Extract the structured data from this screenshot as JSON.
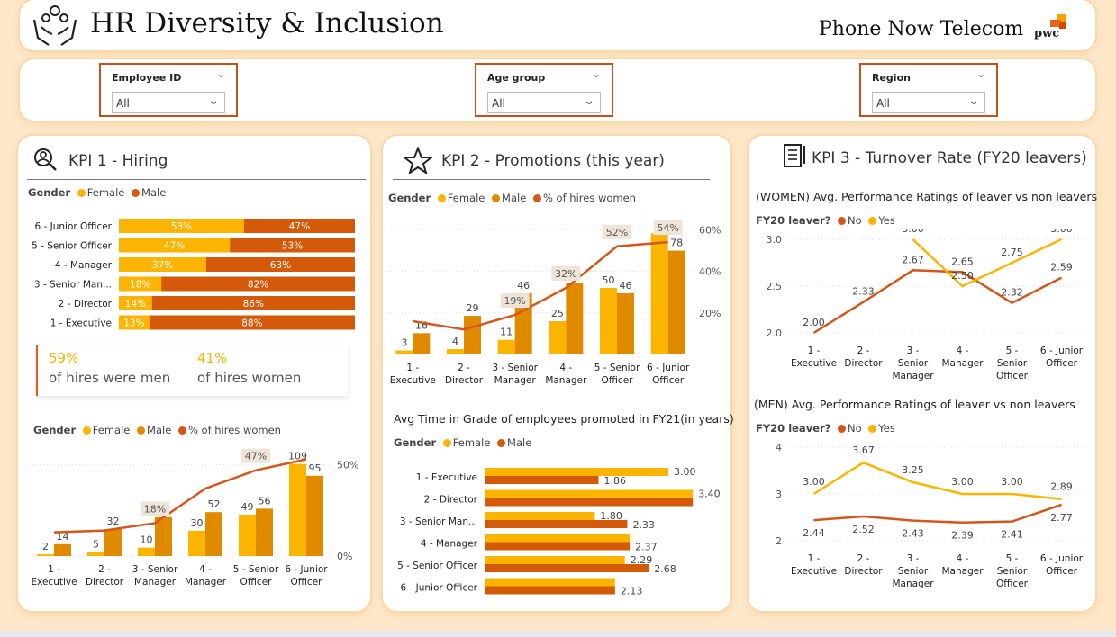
{
  "header": {
    "title": "HR Diversity & Inclusion",
    "company": "Phone Now Telecom",
    "logo_text": "pwc"
  },
  "filters": [
    {
      "label": "Employee ID",
      "value": "All"
    },
    {
      "label": "Age group",
      "value": "All"
    },
    {
      "label": "Region",
      "value": "All"
    }
  ],
  "kpi1": {
    "title": "KPI 1 - Hiring",
    "legend_label": "Gender",
    "legend": [
      "Female",
      "Male"
    ],
    "callout": {
      "men_pct": "59%",
      "men_text": "of hires were men",
      "women_pct": "41%",
      "women_text": "of hires women"
    },
    "legend2": [
      "Female",
      "Male",
      "% of hires women"
    ]
  },
  "kpi2": {
    "title": "KPI 2 - Promotions (this year)",
    "legend_label": "Gender",
    "legend": [
      "Female",
      "Male",
      "% of hires women"
    ],
    "avg_title": "Avg Time in Grade of employees promoted in FY21(in years)",
    "avg_legend": [
      "Female",
      "Male"
    ]
  },
  "kpi3": {
    "title": "KPI 3 - Turnover Rate (FY20 leavers)",
    "women_title": "(WOMEN) Avg. Performance Ratings of leaver vs non leavers",
    "men_title": "(MEN) Avg. Performance Ratings of leaver vs non leavers",
    "legend_label": "FY20 leaver?",
    "legend": [
      "No",
      "Yes"
    ]
  },
  "colors": {
    "female": "#fbb400",
    "male": "#e08a00",
    "male_bar": "#d45a0a",
    "line": "#d4561a",
    "border": "#c4511a"
  },
  "chart_data": [
    {
      "id": "kpi1_stacked",
      "type": "bar",
      "orientation": "horizontal-100%-stacked",
      "categories": [
        "6 - Junior Officer",
        "5 - Senior Officer",
        "4 - Manager",
        "3 - Senior Man...",
        "2 - Director",
        "1 - Executive"
      ],
      "series": [
        {
          "name": "Female",
          "values": [
            53,
            47,
            37,
            18,
            14,
            13
          ],
          "labels": [
            "53%",
            "47%",
            "37%",
            "18%",
            "14%",
            "13%"
          ]
        },
        {
          "name": "Male",
          "values": [
            47,
            53,
            63,
            82,
            86,
            88
          ],
          "labels": [
            "47%",
            "53%",
            "63%",
            "82%",
            "86%",
            "88%"
          ]
        }
      ]
    },
    {
      "id": "kpi1_combo",
      "type": "bar",
      "categories": [
        "1 - Executive",
        "2 - Director",
        "3 - Senior Manager",
        "4 - Manager",
        "5 - Senior Officer",
        "6 - Junior Officer"
      ],
      "series": [
        {
          "name": "Female",
          "values": [
            2,
            5,
            10,
            30,
            49,
            109
          ]
        },
        {
          "name": "Male",
          "values": [
            14,
            32,
            46,
            52,
            56,
            95
          ]
        },
        {
          "name": "% of hires women",
          "type": "line",
          "values": [
            13,
            14,
            18,
            37,
            47,
            53
          ]
        }
      ],
      "y2_ticks": [
        "0%",
        "50%"
      ],
      "line_labels": {
        "2": "18%",
        "4": "47%"
      }
    },
    {
      "id": "kpi2_combo",
      "type": "bar",
      "categories": [
        "1 - Executive",
        "2 - Director",
        "3 - Senior Manager",
        "4 - Manager",
        "5 - Senior Officer",
        "6 - Junior Officer"
      ],
      "series": [
        {
          "name": "Female",
          "values": [
            3,
            4,
            11,
            25,
            50,
            91
          ]
        },
        {
          "name": "Male",
          "values": [
            16,
            29,
            46,
            54,
            46,
            78
          ]
        },
        {
          "name": "% of hires women",
          "type": "line",
          "values": [
            16,
            12,
            19,
            32,
            52,
            54
          ]
        }
      ],
      "y2_ticks": [
        "20%",
        "40%",
        "60%"
      ],
      "line_labels": {
        "2": "19%",
        "3": "32%",
        "4": "52%",
        "5": "54%"
      }
    },
    {
      "id": "kpi2_avg_time",
      "type": "bar",
      "orientation": "horizontal",
      "categories": [
        "1 - Executive",
        "2 - Director",
        "3 - Senior Man...",
        "4 - Manager",
        "5 - Senior Officer",
        "6 - Junior Officer"
      ],
      "series": [
        {
          "name": "Female",
          "values": [
            3.0,
            3.4,
            1.8,
            null,
            2.29,
            null
          ],
          "labels": [
            "3.00",
            "3.40",
            "1.80",
            "",
            "2.29",
            ""
          ]
        },
        {
          "name": "Male",
          "values": [
            1.86,
            3.4,
            2.33,
            2.37,
            2.68,
            2.13
          ],
          "labels": [
            "1.86",
            "",
            "2.33",
            "2.37",
            "2.68",
            "2.13"
          ]
        }
      ]
    },
    {
      "id": "kpi3_women",
      "type": "line",
      "categories": [
        "1 - Executive",
        "2 - Director",
        "3 - Senior Manager",
        "4 - Manager",
        "5 - Senior Officer",
        "6 - Junior Officer"
      ],
      "series": [
        {
          "name": "No",
          "values": [
            2.0,
            2.33,
            2.67,
            2.65,
            2.32,
            2.59
          ]
        },
        {
          "name": "Yes",
          "values": [
            null,
            null,
            3.0,
            2.5,
            2.75,
            3.0
          ]
        }
      ],
      "y_ticks": [
        "2.0",
        "2.5",
        "3.0"
      ],
      "ylim": [
        2.0,
        3.0
      ]
    },
    {
      "id": "kpi3_men",
      "type": "line",
      "categories": [
        "1 - Executive",
        "2 - Director",
        "3 - Senior Manager",
        "4 - Manager",
        "5 - Senior Officer",
        "6 - Junior Officer"
      ],
      "series": [
        {
          "name": "No",
          "values": [
            2.44,
            2.52,
            2.43,
            2.39,
            2.41,
            2.77
          ]
        },
        {
          "name": "Yes",
          "values": [
            3.0,
            3.67,
            3.25,
            3.0,
            3.0,
            2.89
          ]
        }
      ],
      "y_ticks": [
        "2",
        "3",
        "4"
      ],
      "ylim": [
        2,
        4
      ]
    }
  ]
}
